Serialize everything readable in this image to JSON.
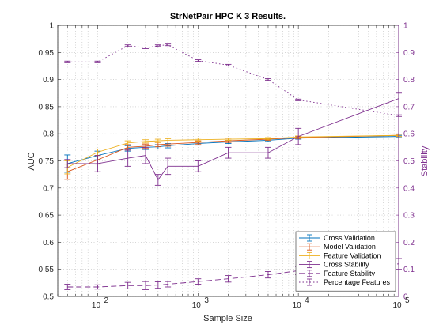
{
  "chart_data": {
    "type": "line",
    "title": "StrNetPair HPC K 3 Results.",
    "xlabel": "Sample Size",
    "ylabel_left": "AUC",
    "ylabel_right": "Stability",
    "xscale": "log",
    "xlim": [
      40,
      100000
    ],
    "ylim_left": [
      0.5,
      1.0
    ],
    "ylim_right": [
      0,
      1
    ],
    "grid": "on",
    "legend_location": "bottom-right",
    "x_ticks": [
      {
        "value": 100,
        "label": "10",
        "exp": "2"
      },
      {
        "value": 1000,
        "label": "10",
        "exp": "3"
      },
      {
        "value": 10000,
        "label": "10",
        "exp": "4"
      },
      {
        "value": 100000,
        "label": "10",
        "exp": "5"
      }
    ],
    "y_ticks_left": [
      "0.5",
      "0.55",
      "0.6",
      "0.65",
      "0.7",
      "0.75",
      "0.8",
      "0.85",
      "0.9",
      "0.95",
      "1"
    ],
    "y_ticks_right": [
      "0",
      "0.1",
      "0.2",
      "0.3",
      "0.4",
      "0.5",
      "0.6",
      "0.7",
      "0.8",
      "0.9",
      "1"
    ],
    "x": [
      50,
      100,
      200,
      300,
      400,
      500,
      1000,
      2000,
      5000,
      10000,
      100000
    ],
    "series": [
      {
        "name": "Cross Validation",
        "axis": "left",
        "color": "#0072bd",
        "style": "solid",
        "values": [
          0.745,
          0.76,
          0.773,
          0.775,
          0.776,
          0.778,
          0.782,
          0.785,
          0.788,
          0.792,
          0.795
        ],
        "err": [
          0.016,
          0.008,
          0.005,
          0.004,
          0.004,
          0.004,
          0.003,
          0.003,
          0.002,
          0.002,
          0.002
        ]
      },
      {
        "name": "Model Validation",
        "axis": "left",
        "color": "#d95319",
        "style": "solid",
        "values": [
          0.73,
          0.752,
          0.775,
          0.777,
          0.78,
          0.781,
          0.784,
          0.787,
          0.79,
          0.793,
          0.797
        ],
        "err": [
          0.014,
          0.008,
          0.005,
          0.004,
          0.004,
          0.004,
          0.003,
          0.003,
          0.002,
          0.002,
          0.002
        ]
      },
      {
        "name": "Feature Validation",
        "axis": "left",
        "color": "#edb120",
        "style": "solid",
        "values": [
          0.738,
          0.766,
          0.783,
          0.786,
          0.787,
          0.788,
          0.789,
          0.79,
          0.791,
          0.794,
          0.797
        ],
        "err": [
          0.012,
          0.006,
          0.004,
          0.003,
          0.003,
          0.003,
          0.003,
          0.002,
          0.002,
          0.002,
          0.002
        ]
      },
      {
        "name": "Cross Stability",
        "axis": "right",
        "color": "#7e2f8e",
        "style": "solid",
        "values": [
          0.49,
          0.49,
          0.51,
          0.52,
          0.43,
          0.48,
          0.48,
          0.53,
          0.53,
          0.59,
          0.73
        ],
        "err": [
          0.015,
          0.03,
          0.03,
          0.03,
          0.02,
          0.03,
          0.02,
          0.02,
          0.02,
          0.03,
          0.02
        ]
      },
      {
        "name": "Feature Stability",
        "axis": "right",
        "color": "#7e2f8e",
        "style": "dashed",
        "values": [
          0.035,
          0.035,
          0.04,
          0.04,
          0.042,
          0.045,
          0.055,
          0.065,
          0.08,
          0.095,
          0.12
        ],
        "err": [
          0.01,
          0.008,
          0.012,
          0.015,
          0.012,
          0.01,
          0.01,
          0.012,
          0.012,
          0.015,
          0.02
        ]
      },
      {
        "name": "Percentage Features",
        "axis": "right",
        "color": "#7e2f8e",
        "style": "dotted",
        "values": [
          0.865,
          0.865,
          0.925,
          0.917,
          0.925,
          0.928,
          0.87,
          0.853,
          0.8,
          0.725,
          0.667
        ],
        "err": [
          0.003,
          0.003,
          0.003,
          0.003,
          0.003,
          0.003,
          0.003,
          0.003,
          0.003,
          0.003,
          0.003
        ]
      }
    ]
  }
}
